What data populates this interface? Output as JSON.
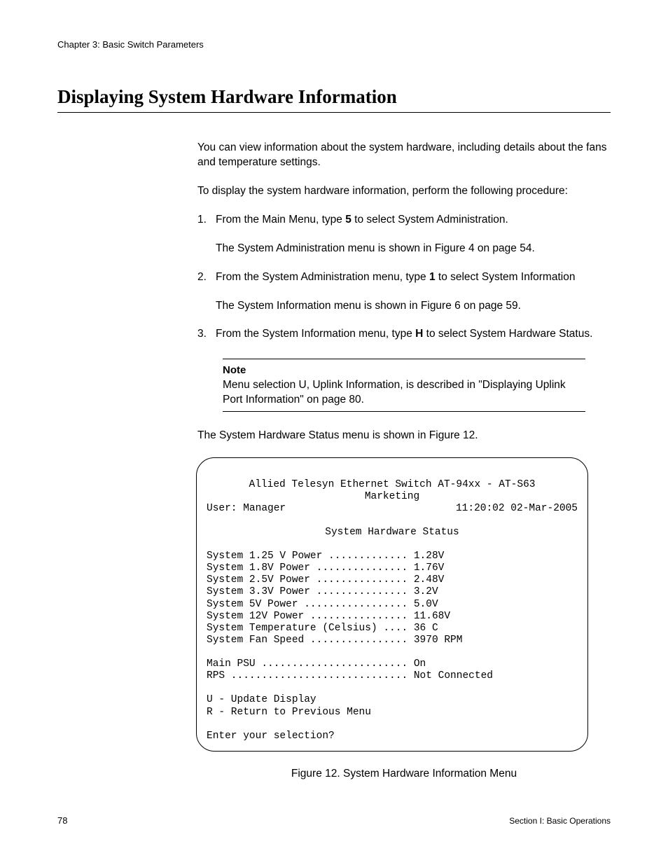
{
  "header": {
    "chapter": "Chapter 3: Basic Switch Parameters"
  },
  "title": "Displaying System Hardware Information",
  "intro1": "You can view information about the system hardware, including details about the fans and temperature settings.",
  "intro2": "To display the system hardware information, perform the following procedure:",
  "steps": {
    "s1": {
      "num": "1.",
      "pre": "From the Main Menu, type ",
      "bold": "5",
      "post": " to select System Administration.",
      "sub": "The System Administration menu is shown in Figure 4 on page 54."
    },
    "s2": {
      "num": "2.",
      "pre": "From the System Administration menu, type ",
      "bold": "1",
      "post": " to select System Information",
      "sub": "The System Information menu is shown in Figure 6 on page 59."
    },
    "s3": {
      "num": "3.",
      "pre": "From the System Information menu, type ",
      "bold": "H",
      "post": " to select System Hardware Status."
    }
  },
  "note": {
    "label": "Note",
    "text": "Menu selection U, Uplink Information, is described in \"Displaying Uplink Port Information\" on page 80."
  },
  "afternote": "The System Hardware Status menu is shown in Figure 12.",
  "terminal": {
    "title1": "Allied Telesyn Ethernet Switch AT-94xx - AT-S63",
    "title2": "Marketing",
    "user": "User: Manager",
    "datetime": "11:20:02 02-Mar-2005",
    "screen_title": "System Hardware Status",
    "rows": [
      "System 1.25 V Power ............. 1.28V",
      "System 1.8V Power ............... 1.76V",
      "System 2.5V Power ............... 2.48V",
      "System 3.3V Power ............... 3.2V",
      "System 5V Power ................. 5.0V",
      "System 12V Power ................ 11.68V",
      "System Temperature (Celsius) .... 36 C",
      "System Fan Speed ................ 3970 RPM"
    ],
    "psu": "Main PSU ........................ On",
    "rps": "RPS ............................. Not Connected",
    "opt_u": "U - Update Display",
    "opt_r": "R - Return to Previous Menu",
    "prompt": "Enter your selection?"
  },
  "figure_caption": "Figure 12. System Hardware Information Menu",
  "footer": {
    "page": "78",
    "section": "Section I: Basic Operations"
  },
  "colors": {
    "text": "#000000",
    "background": "#ffffff"
  }
}
